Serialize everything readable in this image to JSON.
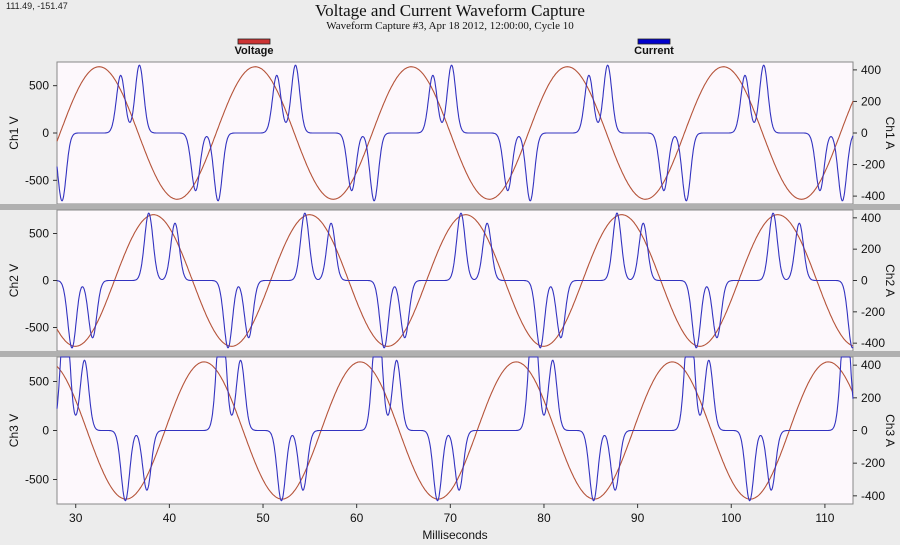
{
  "header": {
    "coordinates": "111.49, -151.47",
    "title": "Voltage and Current Waveform Capture",
    "subtitle": "Waveform Capture #3, Apr 18 2012, 12:00:00,  Cycle 10"
  },
  "chart_data": {
    "type": "line",
    "title": "Voltage and Current Waveform Capture",
    "subtitle": "Waveform Capture #3, Apr 18 2012, 12:00:00,  Cycle 10",
    "xlabel": "Milliseconds",
    "xlim": [
      28,
      113
    ],
    "x_ticks": [
      30,
      40,
      50,
      60,
      70,
      80,
      90,
      100,
      110
    ],
    "legend": {
      "placement": "top",
      "entries": [
        {
          "name": "Voltage",
          "color": "#cc3333"
        },
        {
          "name": "Current",
          "color": "#0000cc"
        }
      ]
    },
    "series_colors": {
      "voltage": "#b5543a",
      "current": "#3333c0"
    },
    "frequency_hz": 60,
    "panels": [
      {
        "left_label": "Ch1 V",
        "right_label": "Ch1 A",
        "left_ticks": [
          500,
          0,
          -500
        ],
        "right_ticks": [
          400,
          200,
          0,
          -200,
          -400
        ],
        "ylim_left": [
          -750,
          750
        ],
        "ylim_right": [
          -450,
          450
        ],
        "voltage": {
          "amplitude": 700,
          "peak_ms": 32.5
        },
        "current": {
          "pulse_amplitude": 430,
          "pulses": [
            {
              "center_ms": 34.8,
              "width_ms": 0.9,
              "sign": 1,
              "scale": 0.85
            },
            {
              "center_ms": 36.8,
              "width_ms": 0.9,
              "sign": 1,
              "scale": 1.0
            },
            {
              "center_ms": 42.8,
              "width_ms": 0.9,
              "sign": -1,
              "scale": 0.85
            },
            {
              "center_ms": 45.2,
              "width_ms": 0.9,
              "sign": -1,
              "scale": 1.0
            }
          ]
        }
      },
      {
        "left_label": "Ch2 V",
        "right_label": "Ch2 A",
        "left_ticks": [
          500,
          0,
          -500
        ],
        "right_ticks": [
          400,
          200,
          0,
          -200,
          -400
        ],
        "ylim_left": [
          -750,
          750
        ],
        "ylim_right": [
          -450,
          450
        ],
        "voltage": {
          "amplitude": 700,
          "peak_ms": 38.3
        },
        "current": {
          "pulse_amplitude": 430,
          "pulses": [
            {
              "center_ms": 37.8,
              "width_ms": 0.9,
              "sign": 1,
              "scale": 1.0
            },
            {
              "center_ms": 40.6,
              "width_ms": 0.9,
              "sign": 1,
              "scale": 0.85
            },
            {
              "center_ms": 29.6,
              "width_ms": 0.9,
              "sign": -1,
              "scale": 1.0
            },
            {
              "center_ms": 31.8,
              "width_ms": 0.9,
              "sign": -1,
              "scale": 0.85
            }
          ]
        }
      },
      {
        "left_label": "Ch3 V",
        "right_label": "Ch3 A",
        "left_ticks": [
          500,
          0,
          -500
        ],
        "right_ticks": [
          400,
          200,
          0,
          -200,
          -400
        ],
        "ylim_left": [
          -750,
          750
        ],
        "ylim_right": [
          -450,
          450
        ],
        "voltage": {
          "amplitude": 700,
          "peak_ms": 43.7
        },
        "current": {
          "pulse_amplitude": 430,
          "pulses": [
            {
              "center_ms": 29.0,
              "width_ms": 0.9,
              "sign": 1,
              "scale": 1.0
            },
            {
              "center_ms": 45.4,
              "width_ms": 0.9,
              "sign": 1,
              "scale": 0.85
            },
            {
              "center_ms": 47.6,
              "width_ms": 0.9,
              "sign": 1,
              "scale": 1.0
            },
            {
              "center_ms": 35.3,
              "width_ms": 0.9,
              "sign": -1,
              "scale": 1.0
            },
            {
              "center_ms": 37.6,
              "width_ms": 0.9,
              "sign": -1,
              "scale": 0.85
            }
          ]
        }
      }
    ]
  }
}
